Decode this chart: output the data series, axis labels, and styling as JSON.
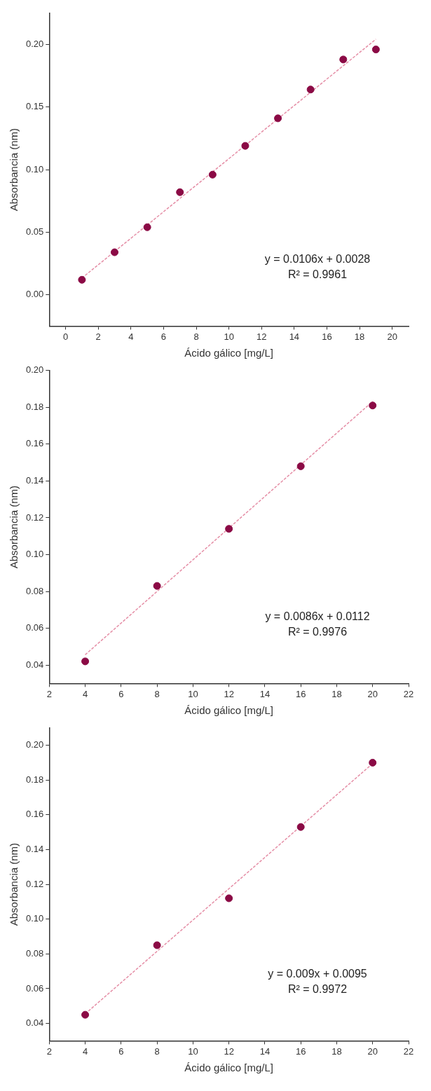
{
  "chart_data": [
    {
      "type": "scatter",
      "xlabel": "Ácido gálico [mg/L]",
      "ylabel": "Absorbancia (nm)",
      "xlim": [
        -1,
        21
      ],
      "xticks": [
        0,
        2,
        4,
        6,
        8,
        10,
        12,
        14,
        16,
        18,
        20
      ],
      "ylim": [
        -0.025,
        0.225
      ],
      "yticks": [
        {
          "value": 0,
          "label": "0.00"
        },
        0.05,
        {
          "value": 0.1,
          "label": "0.10"
        },
        0.15,
        {
          "value": 0.2,
          "label": "0.20"
        }
      ],
      "grid": false,
      "legend": false,
      "annotations": [
        "y = 0.0106x + 0.0028",
        "R² = 0.9961"
      ],
      "series": [
        {
          "type": "scatter",
          "marker": "circle",
          "color": "#8b0a45",
          "x": [
            1,
            3,
            5,
            7,
            9,
            11,
            13,
            15,
            17,
            19
          ],
          "values": [
            0.012,
            0.034,
            0.054,
            0.082,
            0.096,
            0.119,
            0.141,
            0.164,
            0.188,
            0.196
          ]
        },
        {
          "type": "line",
          "marker": "none",
          "line_style": "dashed",
          "color": "#e58ea6",
          "x": [
            1,
            19
          ],
          "values": [
            0.0134,
            0.2042
          ]
        }
      ]
    },
    {
      "type": "scatter",
      "xlabel": "Ácido gálico [mg/L]",
      "ylabel": "Absorbancia (nm)",
      "xlim": [
        2,
        22
      ],
      "xticks": [
        2,
        4,
        6,
        8,
        10,
        12,
        14,
        16,
        18,
        20,
        22
      ],
      "ylim": [
        0.03,
        0.2
      ],
      "yticks": [
        0.04,
        0.06,
        0.08,
        {
          "value": 0.1,
          "label": "0.10"
        },
        0.12,
        0.14,
        0.16,
        0.18,
        {
          "value": 0.2,
          "label": "0.20"
        }
      ],
      "grid": false,
      "legend": false,
      "annotations": [
        "y = 0.0086x + 0.0112",
        "R² = 0.9976"
      ],
      "series": [
        {
          "type": "scatter",
          "marker": "circle",
          "color": "#8b0a45",
          "x": [
            4,
            8,
            12,
            16,
            20
          ],
          "values": [
            0.042,
            0.083,
            0.114,
            0.148,
            0.181
          ]
        },
        {
          "type": "line",
          "marker": "none",
          "line_style": "dashed",
          "color": "#e58ea6",
          "x": [
            4,
            20
          ],
          "values": [
            0.0456,
            0.1832
          ]
        }
      ]
    },
    {
      "type": "scatter",
      "xlabel": "Ácido gálico [mg/L]",
      "ylabel": "Absorbancia (nm)",
      "xlim": [
        2,
        22
      ],
      "xticks": [
        2,
        4,
        6,
        8,
        10,
        12,
        14,
        16,
        18,
        20,
        22
      ],
      "ylim": [
        0.03,
        0.21
      ],
      "yticks": [
        0.04,
        0.06,
        0.08,
        {
          "value": 0.1,
          "label": "0.10"
        },
        0.12,
        0.14,
        0.16,
        0.18,
        {
          "value": 0.2,
          "label": "0.20"
        }
      ],
      "grid": false,
      "legend": false,
      "annotations": [
        "y = 0.009x + 0.0095",
        "R² = 0.9972"
      ],
      "series": [
        {
          "type": "scatter",
          "marker": "circle",
          "color": "#8b0a45",
          "x": [
            4,
            8,
            12,
            16,
            20
          ],
          "values": [
            0.045,
            0.085,
            0.112,
            0.153,
            0.19
          ]
        },
        {
          "type": "line",
          "marker": "none",
          "line_style": "dashed",
          "color": "#e58ea6",
          "x": [
            4,
            20
          ],
          "values": [
            0.0455,
            0.1895
          ]
        }
      ]
    }
  ]
}
